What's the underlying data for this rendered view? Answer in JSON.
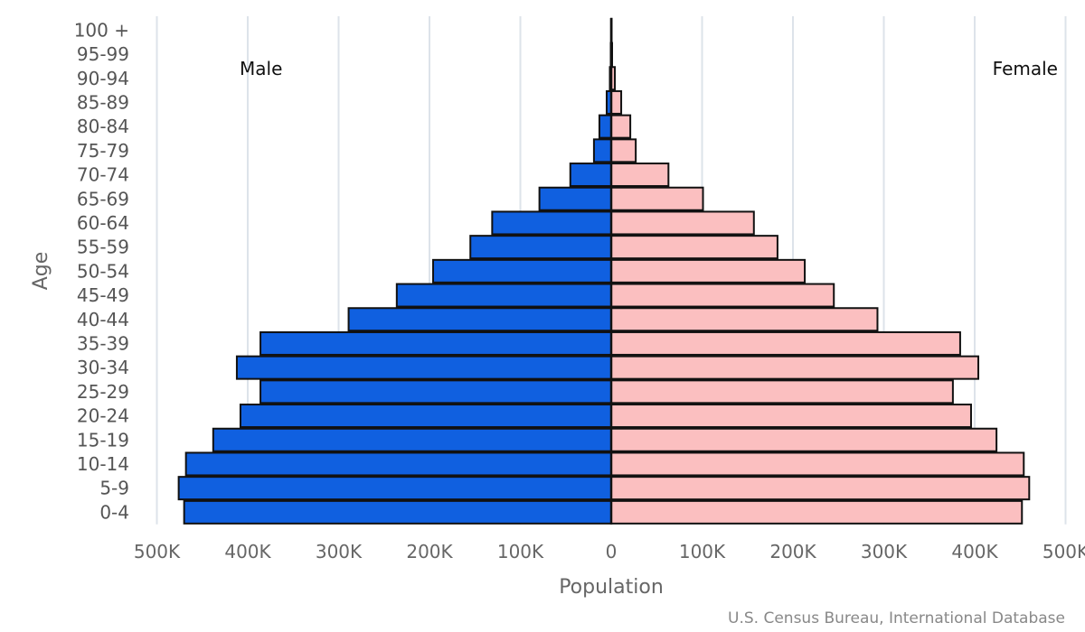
{
  "chart_data": {
    "type": "bar",
    "subtype": "population-pyramid",
    "ylabel": "Age",
    "xlabel": "Population",
    "source": "U.S. Census Bureau, International Database",
    "xlim": [
      -500000,
      500000
    ],
    "x_ticks": [
      -500000,
      -400000,
      -300000,
      -200000,
      -100000,
      0,
      100000,
      200000,
      300000,
      400000,
      500000
    ],
    "x_tick_labels": [
      "500K",
      "400K",
      "300K",
      "200K",
      "100K",
      "0",
      "100K",
      "200K",
      "300K",
      "400K",
      "500K"
    ],
    "categories": [
      "100 +",
      "95-99",
      "90-94",
      "85-89",
      "80-84",
      "75-79",
      "70-74",
      "65-69",
      "60-64",
      "55-59",
      "50-54",
      "45-49",
      "40-44",
      "35-39",
      "30-34",
      "25-29",
      "20-24",
      "15-19",
      "10-14",
      "5-9",
      "0-4"
    ],
    "series": [
      {
        "name": "Male",
        "label": "Male",
        "color": "#1060e0",
        "values": [
          100,
          500,
          1500,
          5000,
          13000,
          19000,
          45000,
          79000,
          131000,
          155000,
          196000,
          236000,
          289000,
          386000,
          412000,
          386000,
          408000,
          438000,
          468000,
          476000,
          470000
        ]
      },
      {
        "name": "Female",
        "label": "Female",
        "color": "#fbbfc0",
        "values": [
          200,
          1000,
          4000,
          11000,
          21000,
          27000,
          63000,
          101000,
          157000,
          183000,
          213000,
          245000,
          293000,
          384000,
          404000,
          376000,
          396000,
          424000,
          454000,
          460000,
          452000
        ]
      }
    ]
  }
}
